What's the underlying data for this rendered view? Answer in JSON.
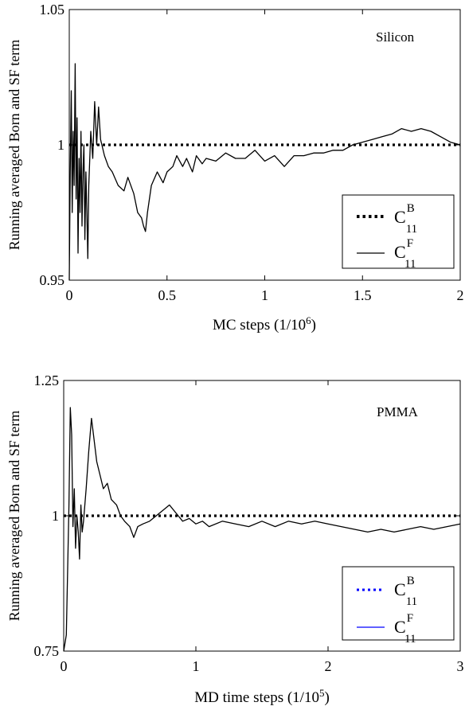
{
  "chart_data": [
    {
      "type": "line",
      "annotation": "Silicon",
      "xlabel": "MC steps (1/10",
      "xlabel_sup": "6",
      "xlabel_end": ")",
      "ylabel": "Running averaged Born and SF term",
      "xlim": [
        0,
        2
      ],
      "ylim": [
        0.95,
        1.05
      ],
      "x_ticks": [
        0,
        0.5,
        1,
        1.5,
        2
      ],
      "x_tick_labels": [
        "0",
        "0.5",
        "1",
        "1.5",
        "2"
      ],
      "y_ticks": [
        0.95,
        1,
        1.05
      ],
      "y_tick_labels": [
        "0.95",
        "1",
        "1.05"
      ],
      "legend_position": "bottom-right",
      "series": [
        {
          "name": "C_11^B",
          "legend_base": "C",
          "legend_sup": "B",
          "legend_sub": "11",
          "style": "dotted",
          "color": "#000000",
          "x": [
            0,
            2
          ],
          "y": [
            1.0,
            1.0
          ]
        },
        {
          "name": "C_11^F",
          "legend_base": "C",
          "legend_sup": "F",
          "legend_sub": "11",
          "style": "solid",
          "color": "#000000",
          "x": [
            0,
            0.005,
            0.01,
            0.015,
            0.02,
            0.025,
            0.03,
            0.035,
            0.04,
            0.045,
            0.05,
            0.055,
            0.06,
            0.065,
            0.07,
            0.075,
            0.08,
            0.085,
            0.09,
            0.095,
            0.1,
            0.11,
            0.12,
            0.13,
            0.14,
            0.15,
            0.16,
            0.18,
            0.2,
            0.22,
            0.25,
            0.28,
            0.3,
            0.33,
            0.35,
            0.37,
            0.38,
            0.39,
            0.4,
            0.42,
            0.45,
            0.48,
            0.5,
            0.53,
            0.55,
            0.58,
            0.6,
            0.63,
            0.65,
            0.68,
            0.7,
            0.75,
            0.8,
            0.85,
            0.9,
            0.95,
            1.0,
            1.05,
            1.1,
            1.15,
            1.2,
            1.25,
            1.3,
            1.35,
            1.4,
            1.45,
            1.5,
            1.55,
            1.6,
            1.65,
            1.7,
            1.75,
            1.8,
            1.85,
            1.9,
            1.95,
            2.0
          ],
          "y": [
            0.95,
            0.99,
            1.02,
            0.975,
            1.005,
            0.985,
            1.03,
            0.98,
            1.01,
            0.96,
            0.995,
            0.975,
            1.005,
            0.97,
            0.99,
            1.0,
            0.965,
            0.99,
            0.975,
            0.958,
            0.985,
            1.005,
            0.995,
            1.016,
            1.0,
            1.014,
            1.002,
            0.996,
            0.992,
            0.99,
            0.985,
            0.983,
            0.988,
            0.982,
            0.975,
            0.973,
            0.97,
            0.968,
            0.975,
            0.985,
            0.99,
            0.986,
            0.99,
            0.992,
            0.996,
            0.992,
            0.995,
            0.99,
            0.996,
            0.993,
            0.995,
            0.994,
            0.997,
            0.995,
            0.995,
            0.998,
            0.994,
            0.996,
            0.992,
            0.996,
            0.996,
            0.997,
            0.997,
            0.998,
            0.998,
            1.0,
            1.001,
            1.002,
            1.003,
            1.004,
            1.006,
            1.005,
            1.006,
            1.005,
            1.003,
            1.001,
            1.0
          ]
        }
      ]
    },
    {
      "type": "line",
      "annotation": "PMMA",
      "xlabel": "MD time steps (1/10",
      "xlabel_sup": "5",
      "xlabel_end": ")",
      "ylabel": "Running averaged Born and SF term",
      "xlim": [
        0,
        3
      ],
      "ylim": [
        0.75,
        1.25
      ],
      "x_ticks": [
        0,
        1,
        2,
        3
      ],
      "x_tick_labels": [
        "0",
        "1",
        "2",
        "3"
      ],
      "y_ticks": [
        0.75,
        1,
        1.25
      ],
      "y_tick_labels": [
        "0.75",
        "1",
        "1.25"
      ],
      "legend_position": "bottom-right",
      "series": [
        {
          "name": "C_11^B",
          "legend_base": "C",
          "legend_sup": "B",
          "legend_sub": "11",
          "style": "dotted",
          "color": "#000000",
          "legend_color": "#0000ff",
          "x": [
            0,
            3
          ],
          "y": [
            1.0,
            1.0
          ]
        },
        {
          "name": "C_11^F",
          "legend_base": "C",
          "legend_sup": "F",
          "legend_sub": "11",
          "style": "solid",
          "color": "#000000",
          "legend_color": "#0000ff",
          "x": [
            0.0,
            0.02,
            0.04,
            0.05,
            0.06,
            0.07,
            0.08,
            0.09,
            0.1,
            0.11,
            0.12,
            0.13,
            0.14,
            0.15,
            0.17,
            0.19,
            0.21,
            0.23,
            0.25,
            0.28,
            0.3,
            0.33,
            0.36,
            0.4,
            0.43,
            0.46,
            0.5,
            0.53,
            0.56,
            0.6,
            0.65,
            0.7,
            0.75,
            0.8,
            0.85,
            0.9,
            0.95,
            1.0,
            1.05,
            1.1,
            1.2,
            1.3,
            1.4,
            1.5,
            1.6,
            1.7,
            1.8,
            1.9,
            2.0,
            2.1,
            2.2,
            2.3,
            2.4,
            2.5,
            2.6,
            2.7,
            2.8,
            2.9,
            3.0
          ],
          "y": [
            0.75,
            0.78,
            1.02,
            1.2,
            1.15,
            0.98,
            1.05,
            0.94,
            1.0,
            0.97,
            0.92,
            1.02,
            0.97,
            0.99,
            1.05,
            1.12,
            1.18,
            1.14,
            1.1,
            1.07,
            1.05,
            1.06,
            1.03,
            1.02,
            1.0,
            0.99,
            0.98,
            0.96,
            0.98,
            0.985,
            0.99,
            1.0,
            1.01,
            1.02,
            1.005,
            0.99,
            0.995,
            0.985,
            0.99,
            0.98,
            0.99,
            0.985,
            0.98,
            0.99,
            0.98,
            0.99,
            0.985,
            0.99,
            0.985,
            0.98,
            0.975,
            0.97,
            0.975,
            0.97,
            0.975,
            0.98,
            0.975,
            0.98,
            0.985
          ]
        }
      ]
    }
  ]
}
